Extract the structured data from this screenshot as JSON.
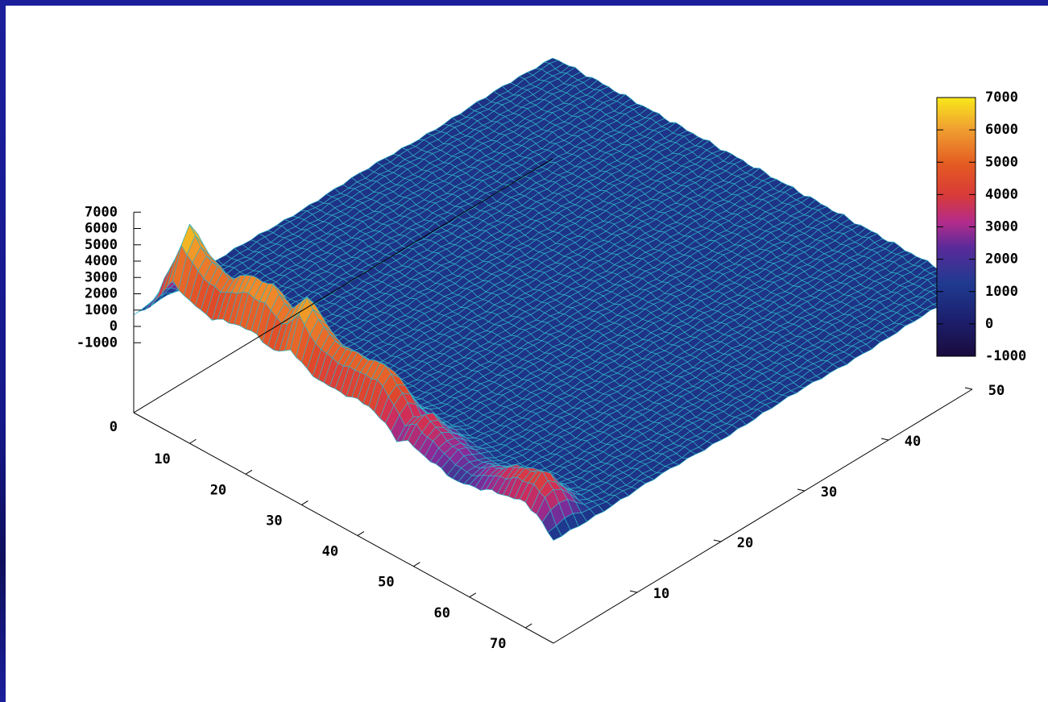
{
  "colors": {
    "frame_background": "#1b1f9c",
    "plot_background": "#ffffff",
    "mesh_line": "#2fb3c7",
    "palette": [
      "#1a0b3d",
      "#1c1f6e",
      "#1f3a90",
      "#8a2a9a",
      "#d02c5a",
      "#e04a28",
      "#ef8a2a",
      "#f8e81a"
    ]
  },
  "chart_data": {
    "type": "surface",
    "title": "",
    "xlabel": "",
    "ylabel": "",
    "zlabel": "",
    "grid": false,
    "legend": "colorbox, right",
    "x_range": [
      0,
      75
    ],
    "y_range": [
      0,
      50
    ],
    "z_range": [
      -1000,
      7000
    ],
    "x_ticks": [
      "10",
      "20",
      "30",
      "40",
      "50",
      "60",
      "70"
    ],
    "x_tick_values": [
      10,
      20,
      30,
      40,
      50,
      60,
      70
    ],
    "y_ticks": [
      "10",
      "20",
      "30",
      "40",
      "50"
    ],
    "y_tick_values": [
      10,
      20,
      30,
      40,
      50
    ],
    "z_ticks": [
      "7000",
      "6000",
      "5000",
      "4000",
      "3000",
      "2000",
      "1000",
      "0",
      "-1000"
    ],
    "z_tick_values": [
      7000,
      6000,
      5000,
      4000,
      3000,
      2000,
      1000,
      0,
      -1000
    ],
    "base_label": "0",
    "colorbox": {
      "ticks": [
        "7000",
        "6000",
        "5000",
        "4000",
        "3000",
        "2000",
        "1000",
        "0",
        "-1000"
      ],
      "tick_values": [
        7000,
        6000,
        5000,
        4000,
        3000,
        2000,
        1000,
        0,
        -1000
      ],
      "range": [
        -1000,
        7000
      ]
    },
    "surface": {
      "baseline": 1000,
      "ridge_position_y": 2,
      "ridge_width_y": 2.5,
      "ridge_profile": [
        [
          0,
          800
        ],
        [
          3,
          2800
        ],
        [
          7,
          6900
        ],
        [
          10,
          5600
        ],
        [
          14,
          5000
        ],
        [
          18,
          5900
        ],
        [
          22,
          6000
        ],
        [
          25,
          5100
        ],
        [
          28,
          6400
        ],
        [
          31,
          5100
        ],
        [
          34,
          4600
        ],
        [
          38,
          4700
        ],
        [
          42,
          4900
        ],
        [
          45,
          3800
        ],
        [
          47,
          2700
        ],
        [
          49,
          3200
        ],
        [
          52,
          2600
        ],
        [
          55,
          2100
        ],
        [
          58,
          1700
        ],
        [
          61,
          2200
        ],
        [
          64,
          2800
        ],
        [
          67,
          3300
        ],
        [
          70,
          3600
        ],
        [
          72,
          3000
        ],
        [
          75,
          900
        ]
      ]
    }
  }
}
